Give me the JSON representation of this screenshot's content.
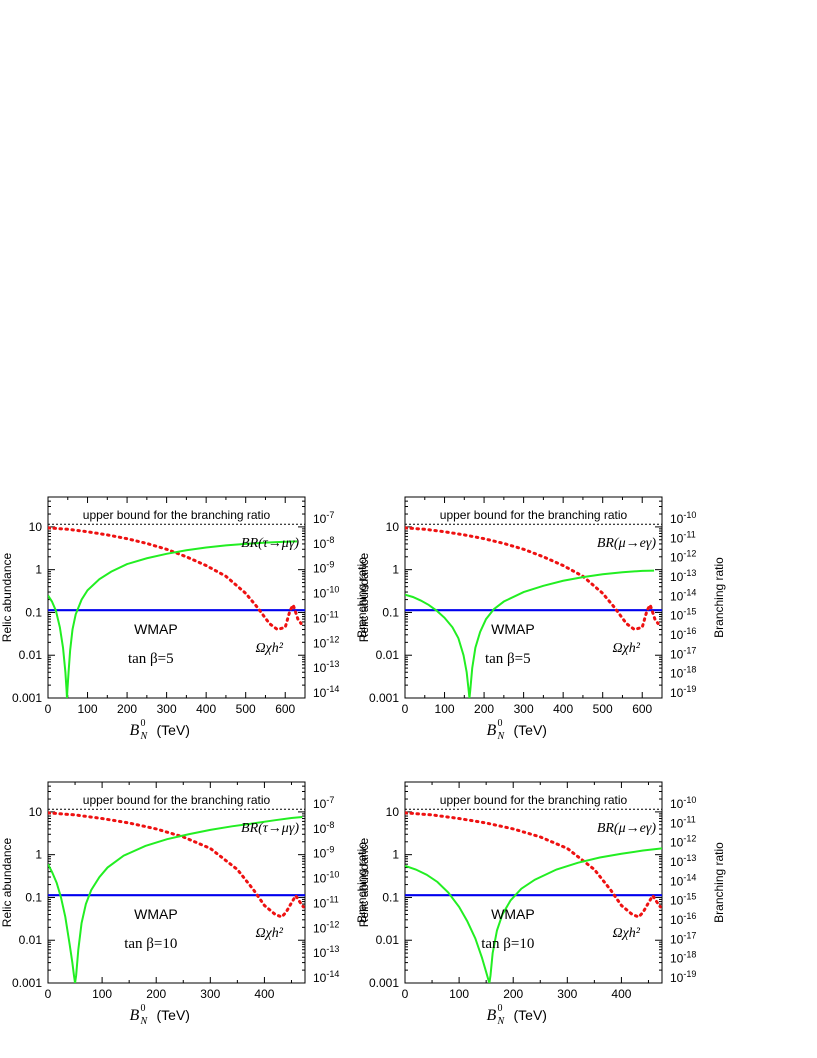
{
  "chart_data": [
    {
      "type": "line",
      "panel": "top-left",
      "xlabel": "(TeV)",
      "ylabel": "Relic abundance",
      "y2label": "Branching ratio",
      "xlim": [
        0,
        650
      ],
      "ylim": [
        0.001,
        50
      ],
      "yscale": "log",
      "y2scale": "log",
      "xticks": [
        0,
        100,
        200,
        300,
        400,
        500,
        600
      ],
      "yticks": [
        "0.001",
        "0.01",
        "0.1",
        "1",
        "10"
      ],
      "y2ticks": [
        "10-14",
        "10-13",
        "10-12",
        "10-11",
        "10-10",
        "10-9",
        "10-8",
        "10-7"
      ],
      "grid": false,
      "annotations": {
        "upper_bound": "upper bound for the branching ratio",
        "wmap": "WMAP",
        "br": "BR(τ→μγ)",
        "omega": "Ωχh²",
        "tanb": "tan β=5"
      },
      "series": [
        {
          "role": "upper-bound",
          "color": "#000000",
          "style": "dotted",
          "x": [
            0,
            650
          ],
          "y": [
            11.5,
            11.5
          ]
        },
        {
          "role": "wmap",
          "color": "#0000ee",
          "style": "solid",
          "x": [
            0,
            650
          ],
          "y": [
            0.113,
            0.113
          ]
        },
        {
          "role": "relic",
          "color": "#ee1111",
          "style": "dotted",
          "x": [
            0,
            50,
            100,
            150,
            200,
            250,
            300,
            350,
            400,
            450,
            500,
            530,
            560,
            580,
            600,
            612,
            620,
            625,
            632,
            640
          ],
          "y": [
            9.5,
            8.8,
            7.7,
            6.5,
            5.3,
            4.1,
            3.0,
            2.0,
            1.25,
            0.7,
            0.28,
            0.13,
            0.055,
            0.04,
            0.045,
            0.11,
            0.15,
            0.11,
            0.07,
            0.055
          ]
        },
        {
          "role": "branching-ratio",
          "color": "#22ee22",
          "style": "solid",
          "x": [
            0,
            10,
            20,
            30,
            38,
            44,
            47,
            48,
            49,
            52,
            56,
            62,
            70,
            85,
            100,
            130,
            160,
            200,
            250,
            300,
            350,
            400,
            450,
            500,
            550,
            600,
            630
          ],
          "y": [
            0.25,
            0.18,
            0.11,
            0.045,
            0.015,
            0.004,
            0.0015,
            0.001,
            0.0015,
            0.004,
            0.013,
            0.04,
            0.09,
            0.2,
            0.33,
            0.6,
            0.9,
            1.35,
            1.85,
            2.35,
            2.85,
            3.3,
            3.7,
            4.0,
            4.3,
            4.5,
            4.6
          ]
        }
      ]
    },
    {
      "type": "line",
      "panel": "top-right",
      "xlabel": "(TeV)",
      "ylabel": "Relic abundance",
      "y2label": "Branching ratio",
      "xlim": [
        0,
        650
      ],
      "ylim": [
        0.001,
        50
      ],
      "yscale": "log",
      "y2scale": "log",
      "xticks": [
        0,
        100,
        200,
        300,
        400,
        500,
        600
      ],
      "yticks": [
        "0.001",
        "0.01",
        "0.1",
        "1",
        "10"
      ],
      "y2ticks": [
        "10-19",
        "10-18",
        "10-17",
        "10-16",
        "10-15",
        "10-14",
        "10-13",
        "10-12",
        "10-11",
        "10-10"
      ],
      "grid": false,
      "annotations": {
        "upper_bound": "upper bound for the branching ratio",
        "wmap": "WMAP",
        "br": "BR(μ→eγ)",
        "omega": "Ωχh²",
        "tanb": "tan β=5"
      },
      "series": [
        {
          "role": "upper-bound",
          "color": "#000000",
          "style": "dotted",
          "x": [
            0,
            650
          ],
          "y": [
            11.5,
            11.5
          ]
        },
        {
          "role": "wmap",
          "color": "#0000ee",
          "style": "solid",
          "x": [
            0,
            650
          ],
          "y": [
            0.113,
            0.113
          ]
        },
        {
          "role": "relic",
          "color": "#ee1111",
          "style": "dotted",
          "x": [
            0,
            50,
            100,
            150,
            200,
            250,
            300,
            350,
            400,
            450,
            500,
            530,
            560,
            580,
            600,
            612,
            620,
            625,
            632,
            640
          ],
          "y": [
            9.5,
            8.8,
            7.7,
            6.5,
            5.3,
            4.1,
            3.0,
            2.0,
            1.25,
            0.7,
            0.28,
            0.13,
            0.055,
            0.04,
            0.045,
            0.11,
            0.15,
            0.11,
            0.07,
            0.055
          ]
        },
        {
          "role": "branching-ratio",
          "color": "#22ee22",
          "style": "solid",
          "x": [
            0,
            20,
            40,
            60,
            80,
            100,
            120,
            135,
            148,
            156,
            161,
            163,
            165,
            170,
            178,
            190,
            205,
            225,
            250,
            300,
            350,
            400,
            450,
            500,
            550,
            600,
            630
          ],
          "y": [
            0.26,
            0.23,
            0.19,
            0.15,
            0.11,
            0.075,
            0.045,
            0.025,
            0.01,
            0.004,
            0.0015,
            0.001,
            0.0015,
            0.005,
            0.015,
            0.035,
            0.07,
            0.12,
            0.18,
            0.3,
            0.42,
            0.55,
            0.67,
            0.78,
            0.87,
            0.94,
            0.95
          ]
        }
      ]
    },
    {
      "type": "line",
      "panel": "bottom-left",
      "xlabel": "(TeV)",
      "ylabel": "Relic abundance",
      "y2label": "Branching ratio",
      "xlim": [
        0,
        475
      ],
      "ylim": [
        0.001,
        50
      ],
      "yscale": "log",
      "y2scale": "log",
      "xticks": [
        0,
        100,
        200,
        300,
        400
      ],
      "yticks": [
        "0.001",
        "0.01",
        "0.1",
        "1",
        "10"
      ],
      "y2ticks": [
        "10-14",
        "10-13",
        "10-12",
        "10-11",
        "10-10",
        "10-9",
        "10-8",
        "10-7"
      ],
      "grid": false,
      "annotations": {
        "upper_bound": "upper bound for the branching ratio",
        "wmap": "WMAP",
        "br": "BR(τ→μγ)",
        "omega": "Ωχh²",
        "tanb": "tan β=10"
      },
      "series": [
        {
          "role": "upper-bound",
          "color": "#000000",
          "style": "dotted",
          "x": [
            0,
            475
          ],
          "y": [
            11.5,
            11.5
          ]
        },
        {
          "role": "wmap",
          "color": "#0000ee",
          "style": "solid",
          "x": [
            0,
            475
          ],
          "y": [
            0.113,
            0.113
          ]
        },
        {
          "role": "relic",
          "color": "#ee1111",
          "style": "dotted",
          "x": [
            0,
            50,
            100,
            150,
            200,
            250,
            300,
            350,
            380,
            400,
            420,
            432,
            440,
            450,
            458,
            465,
            472
          ],
          "y": [
            9.5,
            8.5,
            7.0,
            5.5,
            4.0,
            2.6,
            1.4,
            0.45,
            0.15,
            0.065,
            0.04,
            0.035,
            0.045,
            0.075,
            0.11,
            0.08,
            0.06
          ]
        },
        {
          "role": "branching-ratio",
          "color": "#22ee22",
          "style": "solid",
          "x": [
            0,
            8,
            16,
            24,
            32,
            40,
            45,
            48,
            50,
            52,
            56,
            62,
            70,
            80,
            95,
            110,
            140,
            180,
            220,
            260,
            300,
            340,
            380,
            420,
            450,
            470
          ],
          "y": [
            0.6,
            0.38,
            0.22,
            0.1,
            0.035,
            0.008,
            0.003,
            0.0015,
            0.001,
            0.0015,
            0.006,
            0.025,
            0.07,
            0.15,
            0.3,
            0.5,
            0.95,
            1.6,
            2.3,
            3.0,
            3.8,
            4.6,
            5.4,
            6.4,
            7.2,
            7.6
          ]
        }
      ]
    },
    {
      "type": "line",
      "panel": "bottom-right",
      "xlabel": "(TeV)",
      "ylabel": "Relic abundance",
      "y2label": "Branching ratio",
      "xlim": [
        0,
        475
      ],
      "ylim": [
        0.001,
        50
      ],
      "yscale": "log",
      "y2scale": "log",
      "xticks": [
        0,
        100,
        200,
        300,
        400
      ],
      "yticks": [
        "0.001",
        "0.01",
        "0.1",
        "1",
        "10"
      ],
      "y2ticks": [
        "10-19",
        "10-18",
        "10-17",
        "10-16",
        "10-15",
        "10-14",
        "10-13",
        "10-12",
        "10-11",
        "10-10"
      ],
      "grid": false,
      "annotations": {
        "upper_bound": "upper bound for the branching ratio",
        "wmap": "WMAP",
        "br": "BR(μ→eγ)",
        "omega": "Ωχh²",
        "tanb": "tan β=10"
      },
      "series": [
        {
          "role": "upper-bound",
          "color": "#000000",
          "style": "dotted",
          "x": [
            0,
            475
          ],
          "y": [
            11.5,
            11.5
          ]
        },
        {
          "role": "wmap",
          "color": "#0000ee",
          "style": "solid",
          "x": [
            0,
            475
          ],
          "y": [
            0.113,
            0.113
          ]
        },
        {
          "role": "relic",
          "color": "#ee1111",
          "style": "dotted",
          "x": [
            0,
            50,
            100,
            150,
            200,
            250,
            300,
            350,
            380,
            400,
            420,
            432,
            440,
            450,
            458,
            465,
            472
          ],
          "y": [
            9.5,
            8.5,
            7.0,
            5.5,
            4.0,
            2.6,
            1.4,
            0.45,
            0.15,
            0.065,
            0.04,
            0.035,
            0.045,
            0.075,
            0.11,
            0.08,
            0.06
          ]
        },
        {
          "role": "branching-ratio",
          "color": "#22ee22",
          "style": "solid",
          "x": [
            0,
            20,
            40,
            60,
            80,
            100,
            115,
            130,
            142,
            150,
            154,
            156,
            158,
            162,
            170,
            180,
            195,
            215,
            240,
            280,
            320,
            360,
            400,
            440,
            475
          ],
          "y": [
            0.55,
            0.45,
            0.34,
            0.23,
            0.13,
            0.06,
            0.028,
            0.011,
            0.004,
            0.0018,
            0.0012,
            0.001,
            0.0015,
            0.005,
            0.017,
            0.04,
            0.085,
            0.16,
            0.26,
            0.45,
            0.65,
            0.86,
            1.05,
            1.25,
            1.4
          ]
        }
      ]
    }
  ]
}
